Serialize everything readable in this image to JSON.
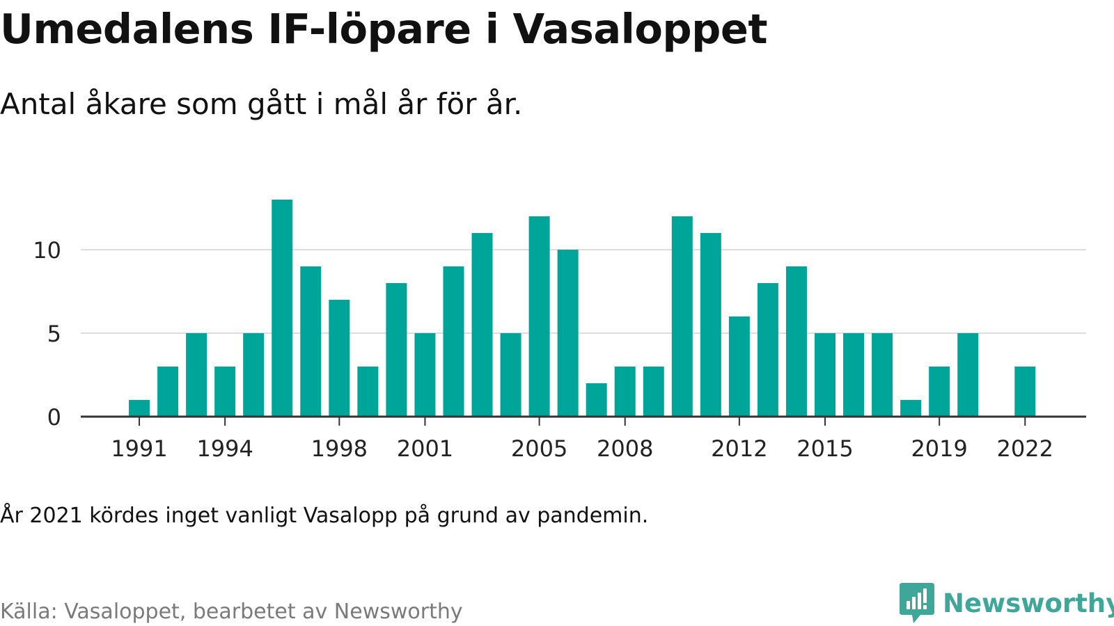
{
  "title": "Umedalens IF-löpare i Vasaloppet",
  "subtitle": "Antal åkare som gått i mål år för år.",
  "note": "År 2021 kördes inget vanligt Vasalopp på grund av pandemin.",
  "source": "Källa: Vasaloppet, bearbetet av Newsworthy",
  "brand": {
    "name": "Newsworthy",
    "icon": "newsworthy-logo-icon",
    "color": "#3fa69a"
  },
  "colors": {
    "bar": "#00a59a",
    "grid": "#dddddd",
    "axis": "#333333",
    "tick_label": "#222222"
  },
  "chart_data": {
    "type": "bar",
    "categories": [
      1990,
      1991,
      1992,
      1993,
      1994,
      1995,
      1996,
      1997,
      1998,
      1999,
      2000,
      2001,
      2002,
      2003,
      2004,
      2005,
      2006,
      2007,
      2008,
      2009,
      2010,
      2011,
      2012,
      2013,
      2014,
      2015,
      2016,
      2017,
      2018,
      2019,
      2020,
      2021,
      2022
    ],
    "values": [
      null,
      1,
      3,
      5,
      3,
      5,
      13,
      9,
      7,
      3,
      8,
      5,
      9,
      11,
      5,
      12,
      10,
      2,
      3,
      3,
      12,
      11,
      6,
      8,
      9,
      5,
      5,
      5,
      1,
      3,
      5,
      null,
      3
    ],
    "x_tick_labels": [
      "1991",
      "1994",
      "1998",
      "2001",
      "2005",
      "2008",
      "2012",
      "2015",
      "2019",
      "2022"
    ],
    "y_ticks": [
      0,
      5,
      10
    ],
    "ylim": [
      0,
      13
    ],
    "grid": true,
    "legend": false
  }
}
